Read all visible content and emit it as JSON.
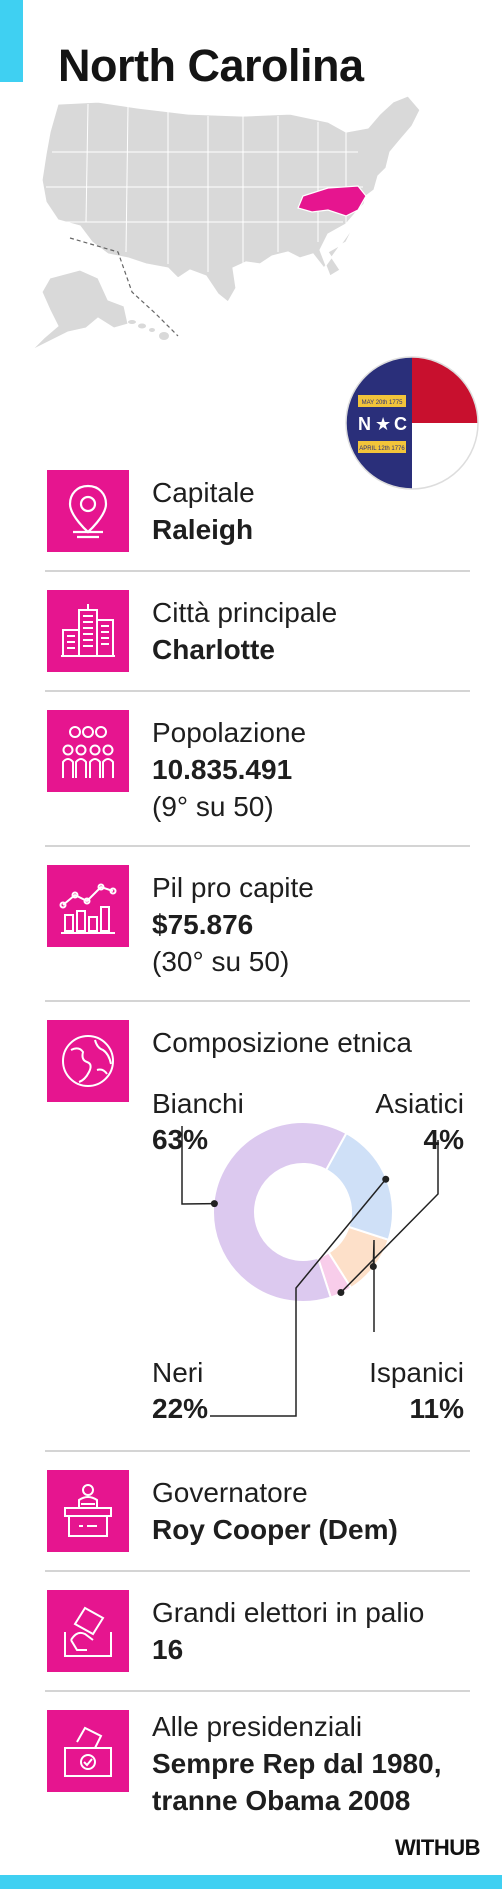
{
  "title": "North Carolina",
  "colors": {
    "accent": "#3fd0f2",
    "icon_bg": "#e6158f",
    "map_gray": "#d9d9d9",
    "highlight": "#e6158f"
  },
  "flag": {
    "letters_left": "N",
    "letters_right": "C",
    "date_top": "MAY 20th 1775",
    "date_bottom": "APRIL 12th 1776"
  },
  "rows": {
    "capitale": {
      "icon": "map-pin-icon",
      "label": "Capitale",
      "value": "Raleigh"
    },
    "citta": {
      "icon": "city-buildings-icon",
      "label": "Città principale",
      "value": "Charlotte"
    },
    "popolazione": {
      "icon": "people-group-icon",
      "label": "Popolazione",
      "value": "10.835.491",
      "sub": "(9° su 50)"
    },
    "pil": {
      "icon": "growth-chart-icon",
      "label": "Pil pro capite",
      "value": "$75.876",
      "sub": "(30° su 50)"
    },
    "etnica": {
      "icon": "globe-icon",
      "label": "Composizione etnica"
    },
    "governatore": {
      "icon": "speaker-podium-icon",
      "label": "Governatore",
      "value": "Roy Cooper (Dem)"
    },
    "elettori": {
      "icon": "ballot-hand-icon",
      "label": "Grandi elettori in palio",
      "value": "16"
    },
    "presidenziali": {
      "icon": "ballot-box-icon",
      "label": "Alle presidenziali",
      "value1": "Sempre Rep dal 1980,",
      "value2": "tranne Obama 2008"
    }
  },
  "chart_data": {
    "type": "pie",
    "variant": "donut",
    "categories": [
      "Bianchi",
      "Asiatici",
      "Ispanici",
      "Neri"
    ],
    "values": [
      63,
      4,
      11,
      22
    ],
    "labels": [
      "63%",
      "4%",
      "11%",
      "22%"
    ],
    "colors": [
      "#dcc9ef",
      "#f8cdea",
      "#fde0c9",
      "#cfe0f7"
    ]
  },
  "brand": "WITHUB"
}
